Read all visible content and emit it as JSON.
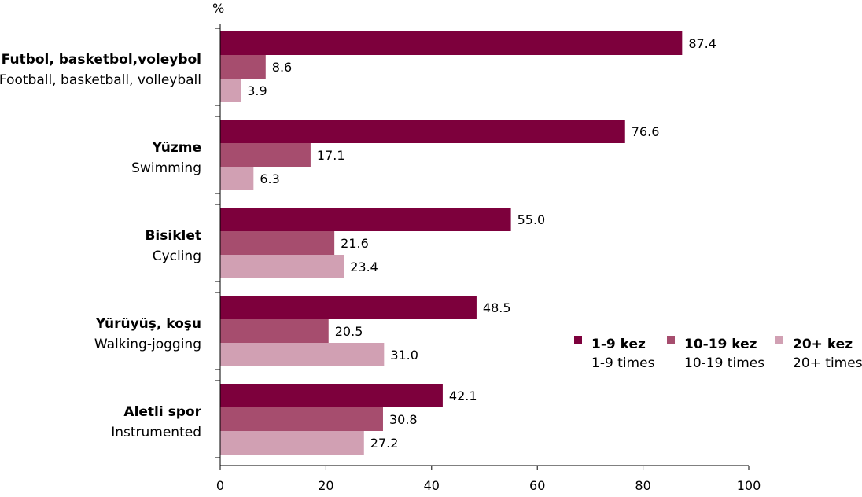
{
  "chart_data": {
    "type": "bar",
    "orientation": "horizontal",
    "unit_label": "%",
    "categories": [
      {
        "tr": "Futbol, basketbol,voleybol",
        "en": "Football, basketball, volleyball"
      },
      {
        "tr": "Yüzme",
        "en": "Swimming"
      },
      {
        "tr": "Bisiklet",
        "en": "Cycling"
      },
      {
        "tr": "Yürüyüş, koşu",
        "en": "Walking-jogging"
      },
      {
        "tr": "Aletli spor",
        "en": "Instrumented"
      }
    ],
    "series": [
      {
        "name": "1-9 kez",
        "name_en": "1-9 times",
        "color": "#7d003c",
        "values": [
          87.4,
          76.6,
          55.0,
          48.5,
          42.1
        ],
        "labels": [
          "87.4",
          "76.6",
          "55.0",
          "48.5",
          "42.1"
        ]
      },
      {
        "name": "10-19 kez",
        "name_en": "10-19 times",
        "color": "#a64d6e",
        "values": [
          8.6,
          17.1,
          21.6,
          20.5,
          30.8
        ],
        "labels": [
          "8.6",
          "17.1",
          "21.6",
          "20.5",
          "30.8"
        ]
      },
      {
        "name": "20+ kez",
        "name_en": "20+ times",
        "color": "#d1a0b3",
        "values": [
          3.9,
          6.3,
          23.4,
          31.0,
          27.2
        ],
        "labels": [
          "3.9",
          "6.3",
          "23.4",
          "31.0",
          "27.2"
        ]
      }
    ],
    "xlim": [
      0,
      100
    ],
    "xticks": [
      "0",
      "20",
      "40",
      "60",
      "80",
      "100"
    ],
    "grid": false,
    "legend_position": "right"
  }
}
